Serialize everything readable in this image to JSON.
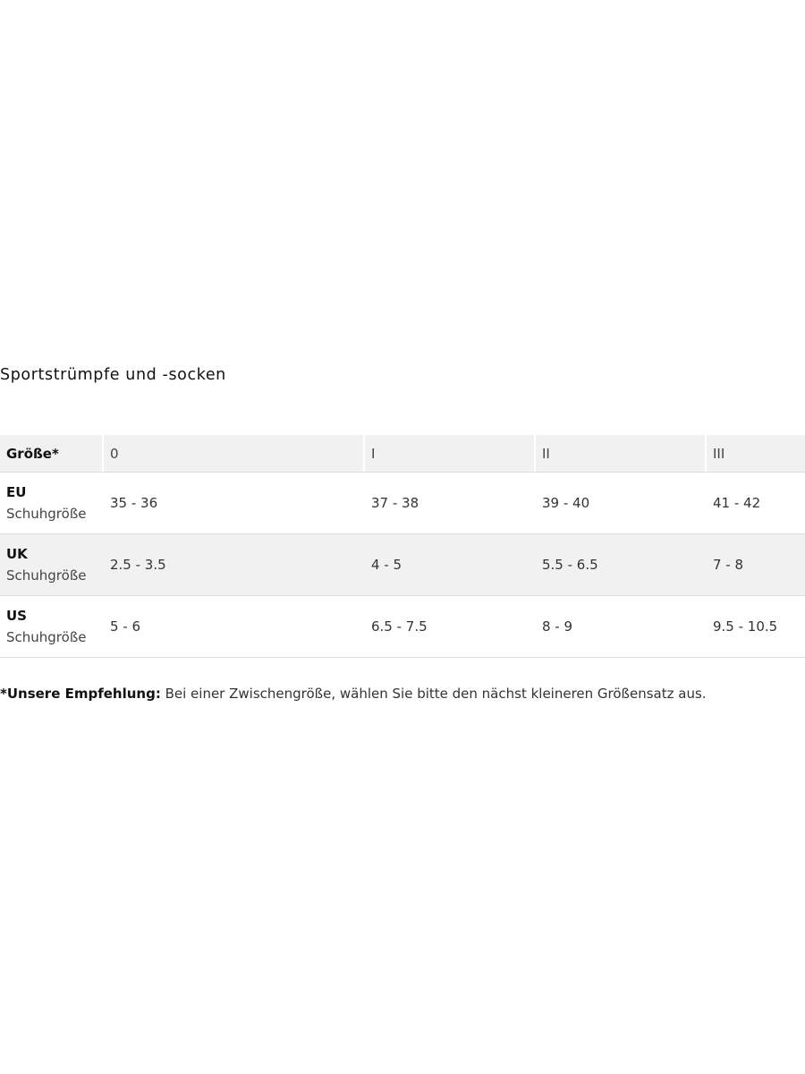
{
  "title": "Sportstrümpfe und -socken",
  "table": {
    "headers": [
      "Größe*",
      "0",
      "I",
      "II",
      "III"
    ],
    "rows": [
      {
        "label": "EU",
        "sublabel": "Schuhgröße",
        "values": [
          "35 - 36",
          "37 - 38",
          "39 - 40",
          "41 - 42"
        ]
      },
      {
        "label": "UK",
        "sublabel": "Schuhgröße",
        "values": [
          "2.5 - 3.5",
          "4 - 5",
          "5.5 - 6.5",
          "7 - 8"
        ]
      },
      {
        "label": "US",
        "sublabel": "Schuhgröße",
        "values": [
          "5 - 6",
          "6.5 - 7.5",
          "8 - 9",
          "9.5 - 10.5"
        ]
      }
    ]
  },
  "note": {
    "label": "*Unsere Empfehlung:",
    "text": " Bei einer Zwischengröße, wählen Sie bitte den nächst kleineren Größensatz aus."
  }
}
